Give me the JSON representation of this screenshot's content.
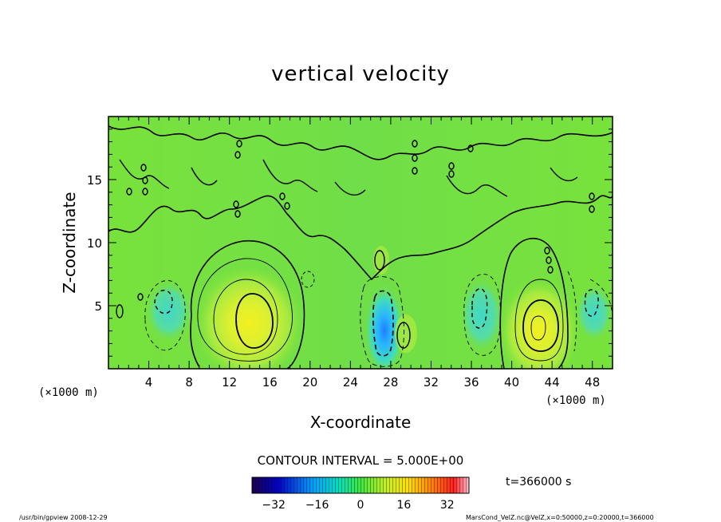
{
  "chart_data": {
    "type": "heatmap",
    "title": "vertical velocity",
    "xlabel": "X-coordinate",
    "ylabel": "Z-coordinate",
    "x_unit": "(×1000 m)",
    "y_unit": "(×1000 m)",
    "xlim": [
      0,
      50
    ],
    "ylim": [
      0,
      20
    ],
    "x_ticks": [
      "4",
      "8",
      "12",
      "16",
      "20",
      "24",
      "28",
      "32",
      "36",
      "40",
      "44",
      "48"
    ],
    "y_ticks": [
      "5",
      "10",
      "15"
    ],
    "contour_interval_label": "CONTOUR INTERVAL = 5.000E+00",
    "time_label": "t=366000 s",
    "colorbar": {
      "range": [
        -40,
        40
      ],
      "ticks": [
        "−32",
        "−16",
        "0",
        "16",
        "32"
      ],
      "colormap": [
        "#1a0050",
        "#0000c8",
        "#00a0ff",
        "#00e0c0",
        "#40e840",
        "#c8f020",
        "#ffe000",
        "#ff8000",
        "#ff2020",
        "#ffc0d0"
      ]
    },
    "features": [
      {
        "kind": "updraft",
        "x": 14,
        "z": 4,
        "peak": 20
      },
      {
        "kind": "updraft",
        "x": 43,
        "z": 3.5,
        "peak": 20
      },
      {
        "kind": "downdraft",
        "x": 27.5,
        "z": 3,
        "peak": -25
      },
      {
        "kind": "downdraft",
        "x": 6,
        "z": 5,
        "peak": -8
      },
      {
        "kind": "downdraft",
        "x": 37,
        "z": 4.5,
        "peak": -10
      },
      {
        "kind": "downdraft",
        "x": 47,
        "z": 5,
        "peak": -8
      }
    ]
  },
  "footer": {
    "left": "/usr/bin/gpview   2008-12-29",
    "right": "MarsCond_VelZ.nc@VelZ,x=0:50000,z=0:20000,t=366000"
  }
}
